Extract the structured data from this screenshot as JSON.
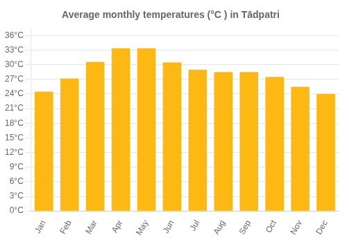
{
  "chart_data": {
    "type": "bar",
    "title": "Average monthly temperatures (°C ) in Tādpatri",
    "categories": [
      "Jan",
      "Feb",
      "Mar",
      "Apr",
      "May",
      "Jun",
      "Jul",
      "Aug",
      "Sep",
      "Oct",
      "Nov",
      "Dec"
    ],
    "values": [
      24.5,
      27.2,
      30.6,
      33.4,
      33.4,
      30.5,
      29.0,
      28.5,
      28.5,
      27.5,
      25.5,
      24.0
    ],
    "color": "#FDB813",
    "ylim": [
      0,
      37.5
    ],
    "yticks": [
      {
        "value": 0,
        "label": "0°C"
      },
      {
        "value": 3,
        "label": "3°C"
      },
      {
        "value": 6,
        "label": "6°C"
      },
      {
        "value": 9,
        "label": "9°C"
      },
      {
        "value": 12,
        "label": "12°C"
      },
      {
        "value": 15,
        "label": "15°C"
      },
      {
        "value": 18,
        "label": "18°C"
      },
      {
        "value": 21,
        "label": "21°C"
      },
      {
        "value": 24,
        "label": "24°C"
      },
      {
        "value": 27,
        "label": "27°C"
      },
      {
        "value": 30,
        "label": "30°C"
      },
      {
        "value": 33,
        "label": "33°C"
      },
      {
        "value": 36,
        "label": "36°C"
      }
    ],
    "grid": true
  }
}
